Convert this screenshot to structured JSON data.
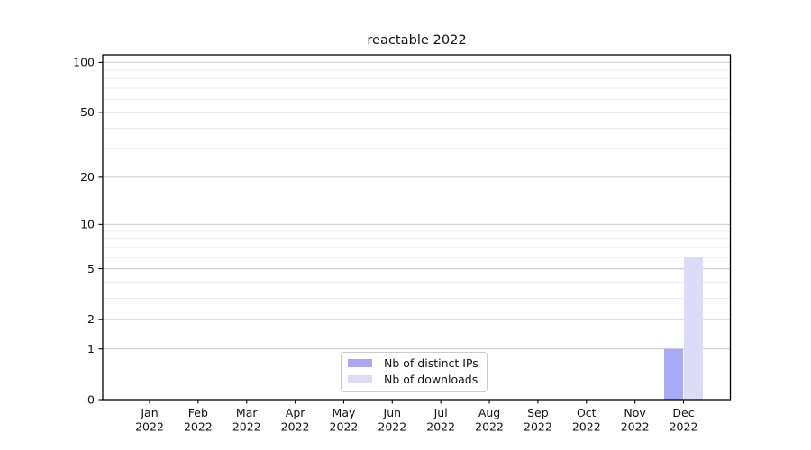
{
  "chart_data": {
    "type": "bar",
    "title": "reactable 2022",
    "categories": [
      "Jan\n2022",
      "Feb\n2022",
      "Mar\n2022",
      "Apr\n2022",
      "May\n2022",
      "Jun\n2022",
      "Jul\n2022",
      "Aug\n2022",
      "Sep\n2022",
      "Oct\n2022",
      "Nov\n2022",
      "Dec\n2022"
    ],
    "series": [
      {
        "name": "Nb of distinct IPs",
        "color": "#a9a9f5",
        "values": [
          0,
          0,
          0,
          0,
          0,
          0,
          0,
          0,
          0,
          0,
          0,
          1
        ]
      },
      {
        "name": "Nb of downloads",
        "color": "#dcdcf8",
        "values": [
          0,
          0,
          0,
          0,
          0,
          0,
          0,
          0,
          0,
          0,
          0,
          6
        ]
      }
    ],
    "y_axis": {
      "scale": "log1p",
      "major_ticks": [
        0,
        1,
        2,
        5,
        10,
        20,
        50,
        100
      ],
      "tick_labels": [
        "0",
        "1",
        "2",
        "5",
        "10",
        "20",
        "50",
        "100"
      ],
      "minor_ticks": [
        3,
        4,
        6,
        7,
        8,
        9,
        30,
        40,
        60,
        70,
        80,
        90
      ],
      "range": [
        0,
        111
      ]
    },
    "x_axis": {
      "year": "2022"
    },
    "legend": {
      "position": "lower center"
    },
    "grid": true
  },
  "colors": {
    "bar_distinct_ips": "#a9a9f5",
    "bar_downloads": "#dcdcf8",
    "major_grid": "#c9c9c9",
    "minor_grid": "#ededed",
    "spine": "#000000",
    "text": "#111111"
  }
}
